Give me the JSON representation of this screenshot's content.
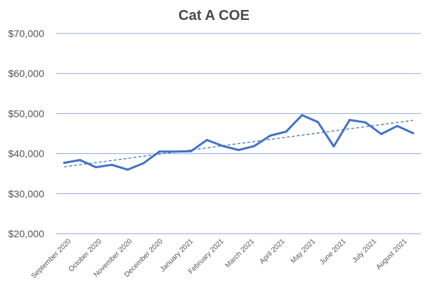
{
  "chart_data": {
    "type": "line",
    "title": "Cat A COE",
    "xlabel": "",
    "ylabel": "",
    "ylim": [
      20000,
      70000
    ],
    "y_ticks": [
      20000,
      30000,
      40000,
      50000,
      60000,
      70000
    ],
    "y_tick_labels": [
      "$20,000",
      "$30,000",
      "$40,000",
      "$50,000",
      "$60,000",
      "$70,000"
    ],
    "x_tick_labels": [
      "September 2020",
      "October 2020",
      "November 2020",
      "December 2020",
      "January 2021",
      "February 2021",
      "March 2021",
      "April 2021",
      "May 2021",
      "June 2021",
      "July 2021",
      "August 2021"
    ],
    "grid": "horizontal",
    "legend": "none",
    "series": [
      {
        "style": "solid",
        "color": "#4472c4",
        "values": [
          37700,
          38400,
          36600,
          37200,
          36000,
          37600,
          40500,
          40500,
          40600,
          43400,
          41900,
          40900,
          41900,
          44500,
          45500,
          49600,
          47900,
          41800,
          48400,
          47800,
          44900,
          46900,
          45100
        ]
      },
      {
        "style": "dashed",
        "color": "#4472c4",
        "kind": "linear-trendline",
        "values": [
          36700,
          48300
        ]
      }
    ],
    "colors": {
      "grid": "#8eaadb",
      "line": "#4472c4"
    }
  }
}
